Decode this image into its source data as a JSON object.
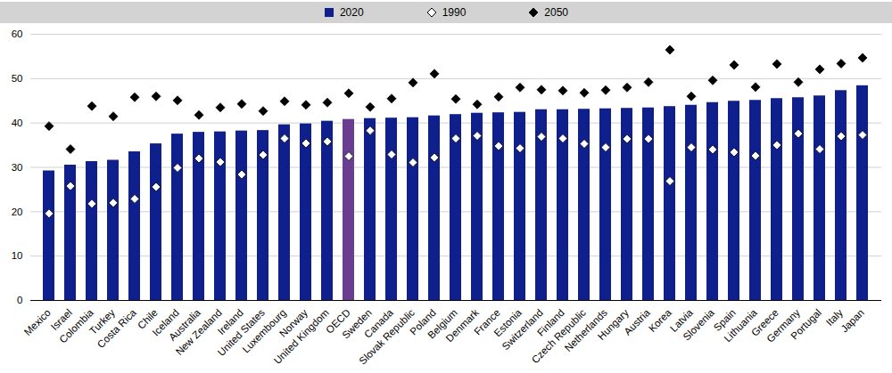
{
  "chart_data": {
    "type": "bar",
    "categories": [
      "Mexico",
      "Israel",
      "Colombia",
      "Turkey",
      "Costa Rica",
      "Chile",
      "Iceland",
      "Australia",
      "New Zealand",
      "Ireland",
      "United States",
      "Luxembourg",
      "Norway",
      "United Kingdom",
      "OECD",
      "Sweden",
      "Canada",
      "Slovak Republic",
      "Poland",
      "Belgium",
      "Denmark",
      "France",
      "Estonia",
      "Switzerland",
      "Finland",
      "Czech Republic",
      "Netherlands",
      "Hungary",
      "Austria",
      "Korea",
      "Latvia",
      "Slovenia",
      "Spain",
      "Lithuania",
      "Greece",
      "Germany",
      "Portugal",
      "Italy",
      "Japan"
    ],
    "series": [
      {
        "name": "2020",
        "type": "bar",
        "color": "#0f1f8c",
        "colors": [
          "#0f1f8c",
          "#0f1f8c",
          "#0f1f8c",
          "#0f1f8c",
          "#0f1f8c",
          "#0f1f8c",
          "#0f1f8c",
          "#0f1f8c",
          "#0f1f8c",
          "#0f1f8c",
          "#0f1f8c",
          "#0f1f8c",
          "#0f1f8c",
          "#0f1f8c",
          "#6b3d91",
          "#0f1f8c",
          "#0f1f8c",
          "#0f1f8c",
          "#0f1f8c",
          "#0f1f8c",
          "#0f1f8c",
          "#0f1f8c",
          "#0f1f8c",
          "#0f1f8c",
          "#0f1f8c",
          "#0f1f8c",
          "#0f1f8c",
          "#0f1f8c",
          "#0f1f8c",
          "#0f1f8c",
          "#0f1f8c",
          "#0f1f8c",
          "#0f1f8c",
          "#0f1f8c",
          "#0f1f8c",
          "#0f1f8c",
          "#0f1f8c",
          "#0f1f8c",
          "#0f1f8c"
        ],
        "values": [
          29.2,
          30.5,
          31.3,
          31.6,
          33.5,
          35.3,
          37.5,
          37.9,
          38.0,
          38.2,
          38.3,
          39.6,
          39.8,
          40.4,
          40.8,
          41.0,
          41.1,
          41.2,
          41.6,
          41.9,
          42.2,
          42.3,
          42.4,
          43.0,
          43.0,
          43.1,
          43.2,
          43.3,
          43.4,
          43.7,
          44.0,
          44.6,
          44.9,
          45.1,
          45.5,
          45.7,
          46.1,
          47.3,
          48.4
        ]
      },
      {
        "name": "1990",
        "type": "scatter",
        "marker": "diamond",
        "color": "#ffffff",
        "values": [
          19.6,
          25.8,
          21.8,
          22.0,
          22.9,
          25.6,
          29.9,
          32.0,
          31.2,
          28.4,
          32.8,
          36.5,
          35.4,
          35.8,
          32.5,
          38.3,
          32.9,
          31.1,
          32.2,
          36.5,
          37.1,
          34.8,
          34.3,
          36.9,
          36.5,
          35.3,
          34.5,
          36.4,
          36.4,
          26.9,
          34.5,
          34.0,
          33.4,
          32.6,
          35.0,
          37.6,
          34.1,
          37.0,
          37.3
        ]
      },
      {
        "name": "2050",
        "type": "scatter",
        "marker": "diamond",
        "color": "#000000",
        "values": [
          39.3,
          34.1,
          43.8,
          41.5,
          45.8,
          46.0,
          45.1,
          41.8,
          43.5,
          44.3,
          42.7,
          44.9,
          44.1,
          44.6,
          46.7,
          43.6,
          45.5,
          49.1,
          51.1,
          45.4,
          44.2,
          45.9,
          48.0,
          47.5,
          47.3,
          46.8,
          47.4,
          48.0,
          49.2,
          56.5,
          46.0,
          49.6,
          53.1,
          48.1,
          53.3,
          49.2,
          52.1,
          53.4,
          54.7
        ]
      }
    ],
    "ylim": [
      0,
      60
    ],
    "yticks": [
      0,
      10,
      20,
      30,
      40,
      50,
      60
    ],
    "grid": true,
    "legend": "top"
  }
}
